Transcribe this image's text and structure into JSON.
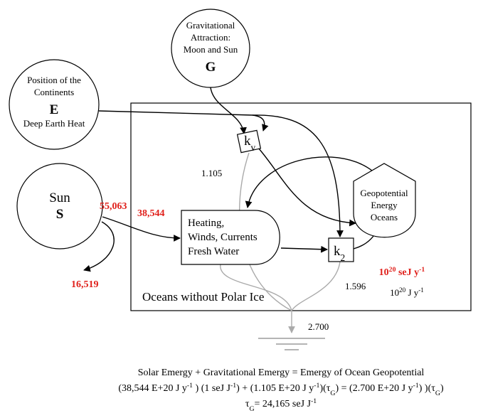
{
  "sources": [
    {
      "lines": [
        "Gravitational",
        "Attraction:",
        "Moon and Sun"
      ],
      "symbol": "G"
    },
    {
      "lines": [
        "Position of the",
        "Continents"
      ],
      "symbol": "E",
      "note": "Deep Earth Heat"
    },
    {
      "lines": [
        "Sun"
      ],
      "symbol": "S"
    }
  ],
  "system": {
    "label": "Oceans without Polar Ice"
  },
  "storage_heating": {
    "lines": [
      "Heating,",
      "Winds, Currents",
      "Fresh Water"
    ]
  },
  "storage_geopotential": {
    "lines": [
      "Geopotential",
      "Energy",
      "Oceans"
    ]
  },
  "interactions": [
    [
      {
        "text": "k"
      },
      {
        "sub": "v"
      }
    ],
    [
      {
        "text": "k"
      },
      {
        "sub": "2"
      }
    ]
  ],
  "flow_labels": {
    "sun_out": "55,063",
    "sun_in": "38,544",
    "reflected": "16,519",
    "tide": "1.105",
    "k2_loss": "1.596",
    "total_loss": "2.700"
  },
  "units": {
    "emergy": [
      {
        "text": "10"
      },
      {
        "sup": "20"
      },
      {
        "text": " seJ y"
      },
      {
        "sup": "-1"
      }
    ],
    "energy": [
      {
        "text": "10"
      },
      {
        "sup": "20"
      },
      {
        "text": " J y"
      },
      {
        "sup": "-1"
      }
    ]
  },
  "equation": [
    [
      {
        "text": "Solar Emergy + Gravitational Emergy = Emergy of Ocean Geopotential"
      }
    ],
    [
      {
        "text": "(38,544 E+20 J y"
      },
      {
        "sup": "-1"
      },
      {
        "text": " ) (1 seJ J"
      },
      {
        "sup": "-1"
      },
      {
        "text": ") + (1.105 E+20 J y"
      },
      {
        "sup": "-1"
      },
      {
        "text": ")(τ"
      },
      {
        "sub": "G"
      },
      {
        "text": ")  = (2.700 E+20 J y"
      },
      {
        "sup": "-1"
      },
      {
        "text": ") )(τ"
      },
      {
        "sub": "G"
      },
      {
        "text": ")"
      }
    ],
    [
      {
        "text": "τ"
      },
      {
        "sub": "G"
      },
      {
        "text": "= 24,165 seJ J"
      },
      {
        "sup": "-1"
      }
    ]
  ]
}
